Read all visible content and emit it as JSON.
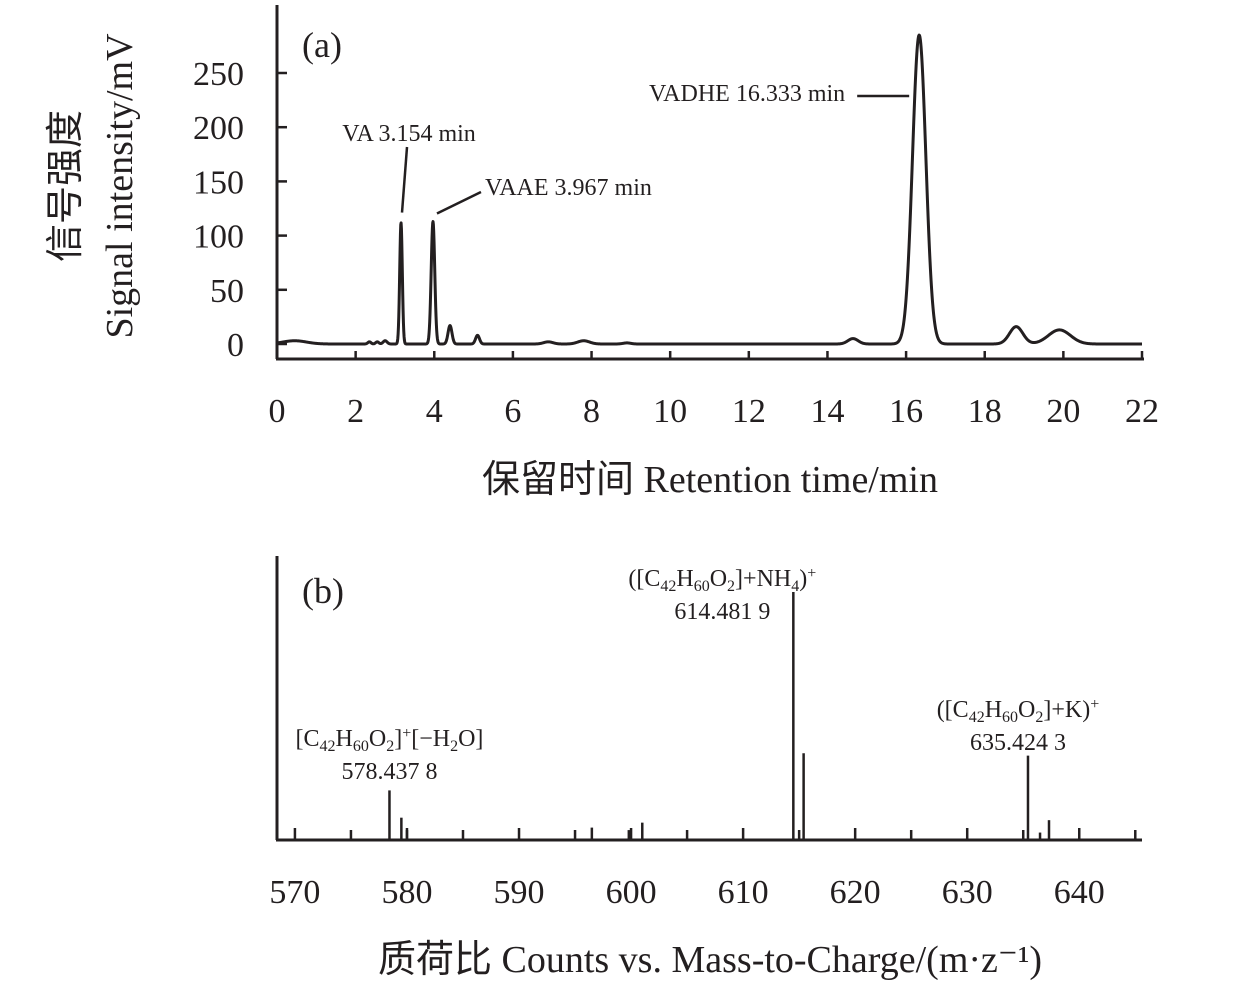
{
  "chart_data": [
    {
      "type": "line",
      "panel_label": "(a)",
      "xlabel": "保留时间 Retention time/min",
      "ylabel_cn": "信号强度",
      "ylabel": "Signal intensity/mV",
      "xlim": [
        0,
        22
      ],
      "ylim": [
        -12,
        290
      ],
      "xticks": [
        0,
        2,
        4,
        6,
        8,
        10,
        12,
        14,
        16,
        18,
        20,
        22
      ],
      "yticks": [
        0,
        50,
        100,
        150,
        200,
        250
      ],
      "peaks": [
        {
          "center": 0.45,
          "height": 3,
          "width": 0.3
        },
        {
          "center": 2.35,
          "height": 2,
          "width": 0.04
        },
        {
          "center": 2.55,
          "height": 2,
          "width": 0.04
        },
        {
          "center": 2.75,
          "height": 3,
          "width": 0.05
        },
        {
          "center": 3.154,
          "height": 112,
          "width": 0.033
        },
        {
          "center": 3.967,
          "height": 113,
          "width": 0.045
        },
        {
          "center": 4.4,
          "height": 17,
          "width": 0.05
        },
        {
          "center": 5.1,
          "height": 8,
          "width": 0.05
        },
        {
          "center": 6.9,
          "height": 2,
          "width": 0.12
        },
        {
          "center": 7.8,
          "height": 3,
          "width": 0.15
        },
        {
          "center": 8.9,
          "height": 1,
          "width": 0.1
        },
        {
          "center": 14.65,
          "height": 5,
          "width": 0.13
        },
        {
          "center": 16.333,
          "height": 285,
          "width": 0.17
        },
        {
          "center": 18.8,
          "height": 16,
          "width": 0.17
        },
        {
          "center": 19.9,
          "height": 13,
          "width": 0.28
        }
      ],
      "annotations": [
        {
          "text": "VA 3.154 min",
          "x": 3.154,
          "y": 112
        },
        {
          "text": "VAAE 3.967 min",
          "x": 3.967,
          "y": 113
        },
        {
          "text": "VADHE 16.333 min",
          "x": 16.333,
          "y": 230
        }
      ]
    },
    {
      "type": "bar",
      "panel_label": "(b)",
      "xlabel": "质荷比 Counts vs. Mass-to-Charge/(m·z⁻¹)",
      "xlim": [
        568.4,
        645.6
      ],
      "ylim": [
        0,
        1.1
      ],
      "xticks": [
        570,
        580,
        590,
        600,
        610,
        620,
        630,
        640
      ],
      "minor_ticks": [
        575,
        585,
        595,
        605,
        615,
        625,
        635,
        645
      ],
      "peaks": [
        {
          "x": 578.4378,
          "y": 0.2
        },
        {
          "x": 579.5,
          "y": 0.09
        },
        {
          "x": 580.0,
          "y": 0.04
        },
        {
          "x": 596.5,
          "y": 0.05
        },
        {
          "x": 599.8,
          "y": 0.04
        },
        {
          "x": 601.0,
          "y": 0.07
        },
        {
          "x": 614.4819,
          "y": 1.0
        },
        {
          "x": 615.4,
          "y": 0.35
        },
        {
          "x": 635.4243,
          "y": 0.34
        },
        {
          "x": 636.5,
          "y": 0.03
        },
        {
          "x": 637.3,
          "y": 0.08
        }
      ],
      "annotations": [
        {
          "formula": [
            [
              "t",
              "[C"
            ],
            [
              "sub",
              "42"
            ],
            [
              "t",
              "H"
            ],
            [
              "sub",
              "60"
            ],
            [
              "t",
              "O"
            ],
            [
              "sub",
              "2"
            ],
            [
              "t",
              "]"
            ],
            [
              "sup",
              "+"
            ],
            [
              "t",
              "[−H"
            ],
            [
              "sub",
              "2"
            ],
            [
              "t",
              "O]"
            ]
          ],
          "mass": "578.437 8",
          "x": 578.4378
        },
        {
          "formula": [
            [
              "t",
              "([C"
            ],
            [
              "sub",
              "42"
            ],
            [
              "t",
              "H"
            ],
            [
              "sub",
              "60"
            ],
            [
              "t",
              "O"
            ],
            [
              "sub",
              "2"
            ],
            [
              "t",
              "]+NH"
            ],
            [
              "sub",
              "4"
            ],
            [
              "t",
              ")"
            ],
            [
              "sup",
              "+"
            ]
          ],
          "mass": "614.481 9",
          "x": 614.4819
        },
        {
          "formula": [
            [
              "t",
              "([C"
            ],
            [
              "sub",
              "42"
            ],
            [
              "t",
              "H"
            ],
            [
              "sub",
              "60"
            ],
            [
              "t",
              "O"
            ],
            [
              "sub",
              "2"
            ],
            [
              "t",
              "]+K)"
            ],
            [
              "sup",
              "+"
            ]
          ],
          "mass": "635.424 3",
          "x": 635.4243
        }
      ]
    }
  ]
}
